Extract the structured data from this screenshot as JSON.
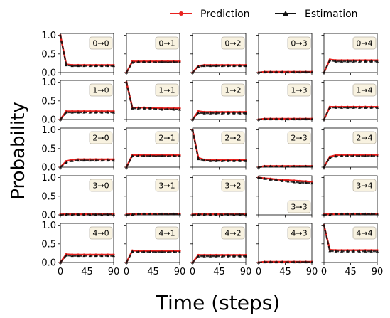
{
  "chart_data": {
    "type": "line",
    "grid_rows": 5,
    "grid_cols": 5,
    "xlabel": "Time (steps)",
    "ylabel": "Probability",
    "xlim": [
      0,
      90
    ],
    "ylim": [
      0,
      1.05
    ],
    "xticks": [
      "0",
      "45",
      "90"
    ],
    "yticks": [
      "0.0",
      "0.5",
      "1.0"
    ],
    "legend": {
      "placement": "top-right",
      "entries": [
        {
          "name": "Prediction",
          "color": "#e8221f",
          "marker": "circle"
        },
        {
          "name": "Estimation",
          "color": "#111111",
          "marker": "triangle"
        }
      ]
    },
    "x": [
      0,
      10,
      20,
      30,
      40,
      50,
      60,
      70,
      80,
      90
    ],
    "panels": [
      {
        "label": "0→0",
        "prediction": [
          1.0,
          0.22,
          0.2,
          0.2,
          0.2,
          0.2,
          0.2,
          0.2,
          0.2,
          0.2
        ],
        "estimation": [
          1.0,
          0.2,
          0.18,
          0.18,
          0.18,
          0.18,
          0.18,
          0.18,
          0.18,
          0.18
        ]
      },
      {
        "label": "0→1",
        "prediction": [
          0.0,
          0.3,
          0.3,
          0.3,
          0.3,
          0.3,
          0.3,
          0.3,
          0.3,
          0.3
        ],
        "estimation": [
          0.0,
          0.27,
          0.28,
          0.28,
          0.28,
          0.28,
          0.28,
          0.28,
          0.28,
          0.28
        ]
      },
      {
        "label": "0→2",
        "prediction": [
          0.0,
          0.18,
          0.2,
          0.2,
          0.2,
          0.2,
          0.2,
          0.2,
          0.2,
          0.2
        ],
        "estimation": [
          0.0,
          0.16,
          0.18,
          0.18,
          0.18,
          0.18,
          0.18,
          0.18,
          0.18,
          0.18
        ]
      },
      {
        "label": "0→3",
        "prediction": [
          0.0,
          0.02,
          0.02,
          0.02,
          0.02,
          0.02,
          0.02,
          0.02,
          0.02,
          0.02
        ],
        "estimation": [
          0.0,
          0.01,
          0.01,
          0.01,
          0.01,
          0.01,
          0.01,
          0.01,
          0.01,
          0.01
        ]
      },
      {
        "label": "0→4",
        "prediction": [
          0.0,
          0.35,
          0.33,
          0.33,
          0.33,
          0.33,
          0.33,
          0.33,
          0.33,
          0.33
        ],
        "estimation": [
          0.0,
          0.33,
          0.3,
          0.3,
          0.3,
          0.3,
          0.3,
          0.3,
          0.3,
          0.3
        ]
      },
      {
        "label": "1→0",
        "prediction": [
          0.0,
          0.22,
          0.22,
          0.22,
          0.22,
          0.22,
          0.22,
          0.22,
          0.22,
          0.22
        ],
        "estimation": [
          0.0,
          0.19,
          0.19,
          0.19,
          0.19,
          0.19,
          0.19,
          0.19,
          0.19,
          0.19
        ]
      },
      {
        "label": "1→1",
        "prediction": [
          1.0,
          0.32,
          0.32,
          0.32,
          0.31,
          0.31,
          0.3,
          0.3,
          0.3,
          0.3
        ],
        "estimation": [
          1.0,
          0.3,
          0.3,
          0.3,
          0.3,
          0.28,
          0.27,
          0.28,
          0.27,
          0.27
        ]
      },
      {
        "label": "1→2",
        "prediction": [
          0.0,
          0.22,
          0.2,
          0.2,
          0.2,
          0.2,
          0.2,
          0.2,
          0.2,
          0.2
        ],
        "estimation": [
          0.0,
          0.18,
          0.17,
          0.17,
          0.17,
          0.17,
          0.17,
          0.17,
          0.17,
          0.17
        ]
      },
      {
        "label": "1→3",
        "prediction": [
          0.0,
          0.02,
          0.02,
          0.02,
          0.02,
          0.02,
          0.02,
          0.02,
          0.02,
          0.02
        ],
        "estimation": [
          0.0,
          0.01,
          0.01,
          0.01,
          0.01,
          0.01,
          0.01,
          0.01,
          0.01,
          0.01
        ]
      },
      {
        "label": "1→4",
        "prediction": [
          0.0,
          0.34,
          0.34,
          0.34,
          0.34,
          0.34,
          0.34,
          0.34,
          0.34,
          0.34
        ],
        "estimation": [
          0.0,
          0.32,
          0.32,
          0.32,
          0.32,
          0.32,
          0.32,
          0.32,
          0.32,
          0.32
        ]
      },
      {
        "label": "2→0",
        "prediction": [
          0.0,
          0.16,
          0.2,
          0.21,
          0.21,
          0.21,
          0.21,
          0.21,
          0.21,
          0.21
        ],
        "estimation": [
          0.0,
          0.12,
          0.17,
          0.18,
          0.18,
          0.18,
          0.18,
          0.18,
          0.18,
          0.18
        ]
      },
      {
        "label": "2→1",
        "prediction": [
          0.0,
          0.33,
          0.32,
          0.32,
          0.32,
          0.32,
          0.32,
          0.32,
          0.32,
          0.32
        ],
        "estimation": [
          0.0,
          0.3,
          0.3,
          0.3,
          0.3,
          0.3,
          0.3,
          0.3,
          0.3,
          0.3
        ]
      },
      {
        "label": "2→2",
        "prediction": [
          1.0,
          0.25,
          0.2,
          0.19,
          0.19,
          0.19,
          0.19,
          0.19,
          0.19,
          0.19
        ],
        "estimation": [
          1.0,
          0.22,
          0.18,
          0.17,
          0.17,
          0.17,
          0.17,
          0.17,
          0.17,
          0.17
        ]
      },
      {
        "label": "2→3",
        "prediction": [
          0.0,
          0.03,
          0.03,
          0.03,
          0.03,
          0.03,
          0.03,
          0.03,
          0.03,
          0.03
        ],
        "estimation": [
          0.0,
          0.02,
          0.02,
          0.02,
          0.02,
          0.02,
          0.02,
          0.02,
          0.02,
          0.02
        ]
      },
      {
        "label": "2→4",
        "prediction": [
          0.0,
          0.28,
          0.32,
          0.33,
          0.33,
          0.33,
          0.33,
          0.33,
          0.33,
          0.33
        ],
        "estimation": [
          0.0,
          0.26,
          0.29,
          0.3,
          0.3,
          0.3,
          0.3,
          0.3,
          0.3,
          0.3
        ]
      },
      {
        "label": "3→0",
        "prediction": [
          0.01,
          0.02,
          0.02,
          0.02,
          0.02,
          0.02,
          0.02,
          0.02,
          0.02,
          0.02
        ],
        "estimation": [
          0.0,
          0.01,
          0.01,
          0.01,
          0.01,
          0.01,
          0.01,
          0.01,
          0.01,
          0.01
        ]
      },
      {
        "label": "3→1",
        "prediction": [
          0.01,
          0.02,
          0.02,
          0.03,
          0.03,
          0.03,
          0.03,
          0.03,
          0.03,
          0.03
        ],
        "estimation": [
          0.0,
          0.01,
          0.02,
          0.02,
          0.02,
          0.02,
          0.02,
          0.02,
          0.02,
          0.02
        ]
      },
      {
        "label": "3→2",
        "prediction": [
          0.01,
          0.02,
          0.02,
          0.02,
          0.02,
          0.02,
          0.02,
          0.02,
          0.02,
          0.02
        ],
        "estimation": [
          0.0,
          0.01,
          0.01,
          0.01,
          0.01,
          0.01,
          0.01,
          0.01,
          0.01,
          0.01
        ]
      },
      {
        "label": "3→3",
        "prediction": [
          1.0,
          0.98,
          0.97,
          0.95,
          0.94,
          0.93,
          0.92,
          0.91,
          0.9,
          0.89
        ],
        "estimation": [
          1.0,
          0.97,
          0.95,
          0.93,
          0.91,
          0.9,
          0.88,
          0.87,
          0.86,
          0.85
        ]
      },
      {
        "label": "3→4",
        "prediction": [
          0.01,
          0.02,
          0.02,
          0.03,
          0.03,
          0.03,
          0.03,
          0.03,
          0.03,
          0.03
        ],
        "estimation": [
          0.0,
          0.01,
          0.02,
          0.02,
          0.02,
          0.02,
          0.02,
          0.02,
          0.02,
          0.02
        ]
      },
      {
        "label": "4→0",
        "prediction": [
          0.0,
          0.22,
          0.21,
          0.21,
          0.21,
          0.21,
          0.21,
          0.21,
          0.21,
          0.21
        ],
        "estimation": [
          0.0,
          0.19,
          0.18,
          0.18,
          0.18,
          0.18,
          0.18,
          0.18,
          0.18,
          0.18
        ]
      },
      {
        "label": "4→1",
        "prediction": [
          0.0,
          0.32,
          0.31,
          0.31,
          0.31,
          0.31,
          0.31,
          0.31,
          0.31,
          0.31
        ],
        "estimation": [
          0.0,
          0.29,
          0.28,
          0.28,
          0.28,
          0.28,
          0.28,
          0.28,
          0.28,
          0.28
        ]
      },
      {
        "label": "4→2",
        "prediction": [
          0.0,
          0.2,
          0.2,
          0.2,
          0.2,
          0.2,
          0.2,
          0.2,
          0.2,
          0.2
        ],
        "estimation": [
          0.0,
          0.17,
          0.17,
          0.17,
          0.17,
          0.17,
          0.17,
          0.17,
          0.17,
          0.17
        ]
      },
      {
        "label": "4→3",
        "prediction": [
          0.0,
          0.02,
          0.02,
          0.02,
          0.02,
          0.02,
          0.02,
          0.02,
          0.02,
          0.02
        ],
        "estimation": [
          0.0,
          0.01,
          0.01,
          0.01,
          0.01,
          0.01,
          0.01,
          0.01,
          0.01,
          0.01
        ]
      },
      {
        "label": "4→4",
        "prediction": [
          1.0,
          0.34,
          0.33,
          0.33,
          0.33,
          0.33,
          0.33,
          0.33,
          0.33,
          0.33
        ],
        "estimation": [
          1.0,
          0.31,
          0.3,
          0.3,
          0.3,
          0.3,
          0.3,
          0.3,
          0.3,
          0.3
        ]
      }
    ]
  }
}
